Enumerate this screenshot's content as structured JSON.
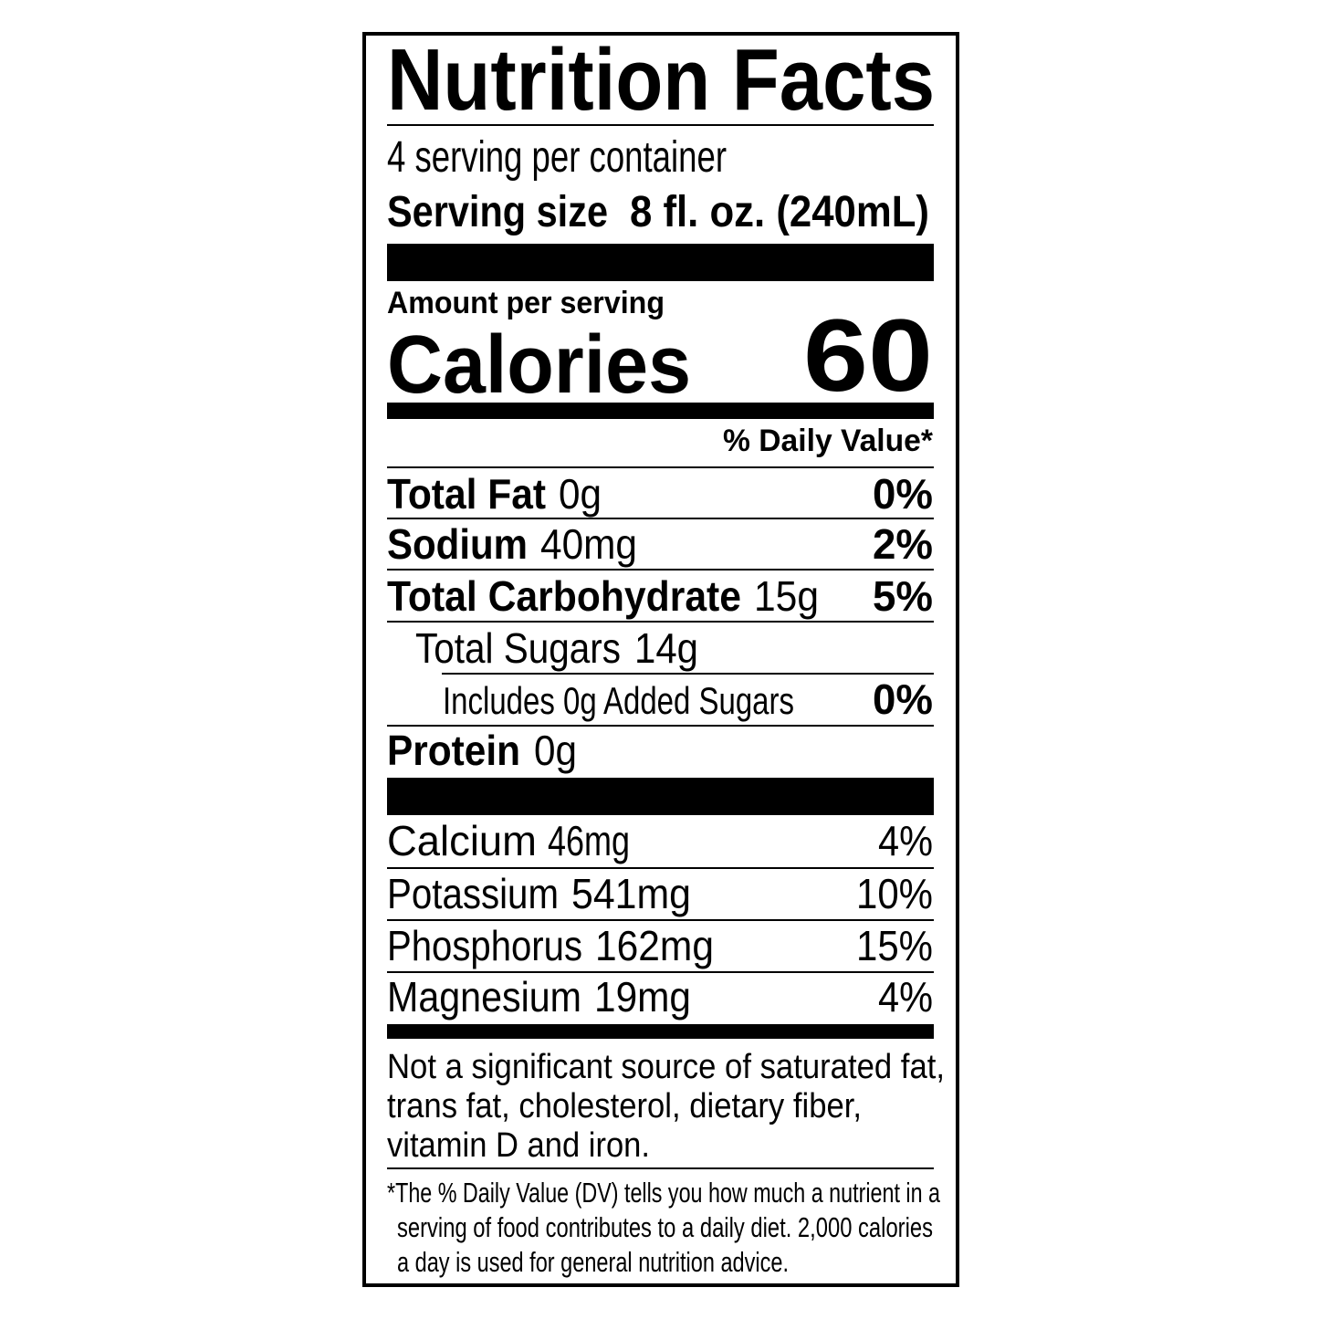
{
  "title": "Nutrition Facts",
  "servings": "4 serving per container",
  "serving_size": {
    "label": "Serving size",
    "value": "8 fl. oz. (240mL)"
  },
  "amount_per_serving": "Amount per serving",
  "calories": {
    "label": "Calories",
    "value": "60"
  },
  "daily_value_header": "% Daily Value*",
  "nutrients": [
    {
      "name": "Total Fat",
      "amount": "0g",
      "dv": "0%"
    },
    {
      "name": "Sodium",
      "amount": "40mg",
      "dv": "2%"
    },
    {
      "name": "Total Carbohydrate",
      "amount": "15g",
      "dv": "5%"
    },
    {
      "name": "Total Sugars",
      "amount": "14g"
    },
    {
      "name": "Includes 0g Added Sugars",
      "dv": "0%"
    },
    {
      "name": "Protein",
      "amount": "0g"
    }
  ],
  "vitamins": [
    {
      "name": "Calcium",
      "amount": "46mg",
      "dv": "4%"
    },
    {
      "name": "Potassium",
      "amount": "541mg",
      "dv": "10%"
    },
    {
      "name": "Phosphorus",
      "amount": "162mg",
      "dv": "15%"
    },
    {
      "name": "Magnesium",
      "amount": "19mg",
      "dv": "4%"
    }
  ],
  "note_lines": [
    "Not a significant source of saturated fat,",
    "trans fat, cholesterol, dietary fiber,",
    "vitamin D and iron."
  ],
  "footnote_lines": [
    "*The % Daily Value (DV) tells you how much a nutrient in a",
    "serving of food contributes to a daily diet. 2,000 calories",
    "a day is used for general nutrition advice."
  ]
}
